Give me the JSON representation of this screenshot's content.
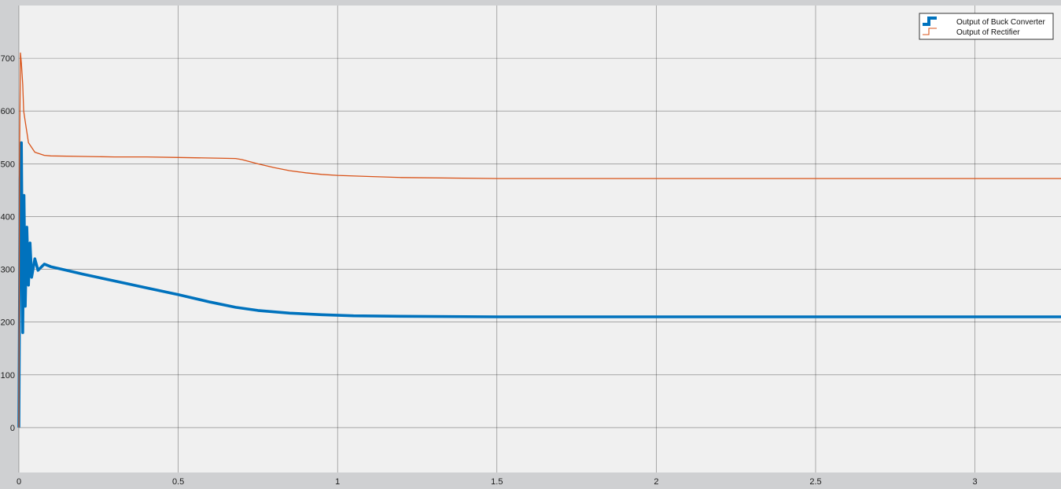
{
  "chart_data": {
    "type": "line",
    "title": "",
    "xlabel": "",
    "ylabel": "",
    "xlim": [
      0,
      3.27
    ],
    "ylim": [
      -85,
      800
    ],
    "grid": true,
    "legend_position": "top-right",
    "x_ticks": [
      0,
      0.5,
      1,
      1.5,
      2,
      2.5,
      3
    ],
    "x_tick_labels": [
      "0",
      "0.5",
      "1",
      "1.5",
      "2",
      "2.5",
      "3"
    ],
    "y_ticks": [
      0,
      100,
      200,
      300,
      400,
      500,
      600,
      700
    ],
    "y_tick_labels": [
      "0",
      "100",
      "200",
      "300",
      "400",
      "500",
      "600",
      "700"
    ],
    "colors": {
      "plot_background": "#f0f0f0",
      "frame": "#cfd0d2",
      "grid": "#1a1a1a"
    },
    "series": [
      {
        "name": "Output of Buck Converter",
        "color": "#0072bd",
        "x": [
          0,
          0.004,
          0.008,
          0.012,
          0.016,
          0.02,
          0.025,
          0.03,
          0.035,
          0.04,
          0.05,
          0.06,
          0.08,
          0.1,
          0.15,
          0.2,
          0.3,
          0.4,
          0.5,
          0.6,
          0.68,
          0.75,
          0.85,
          0.95,
          1.05,
          1.2,
          1.5,
          2,
          2.5,
          3,
          3.27
        ],
        "y": [
          0,
          470,
          540,
          180,
          440,
          230,
          380,
          270,
          350,
          285,
          320,
          298,
          310,
          305,
          298,
          291,
          278,
          265,
          252,
          238,
          228,
          222,
          217,
          214,
          212,
          211,
          210,
          210,
          210,
          210,
          210
        ]
      },
      {
        "name": "Output of Rectifier",
        "color": "#d95319",
        "x": [
          0,
          0.002,
          0.005,
          0.008,
          0.012,
          0.015,
          0.02,
          0.03,
          0.05,
          0.08,
          0.1,
          0.2,
          0.3,
          0.4,
          0.5,
          0.6,
          0.68,
          0.7,
          0.75,
          0.8,
          0.85,
          0.9,
          0.95,
          1,
          1.1,
          1.2,
          1.5,
          2,
          2.5,
          3,
          3.27
        ],
        "y": [
          0,
          500,
          710,
          690,
          650,
          600,
          580,
          540,
          522,
          516,
          515,
          514,
          513,
          513,
          512,
          511,
          510,
          508,
          500,
          493,
          487,
          483,
          480,
          478,
          476,
          474,
          472,
          472,
          472,
          472,
          472
        ]
      }
    ]
  }
}
